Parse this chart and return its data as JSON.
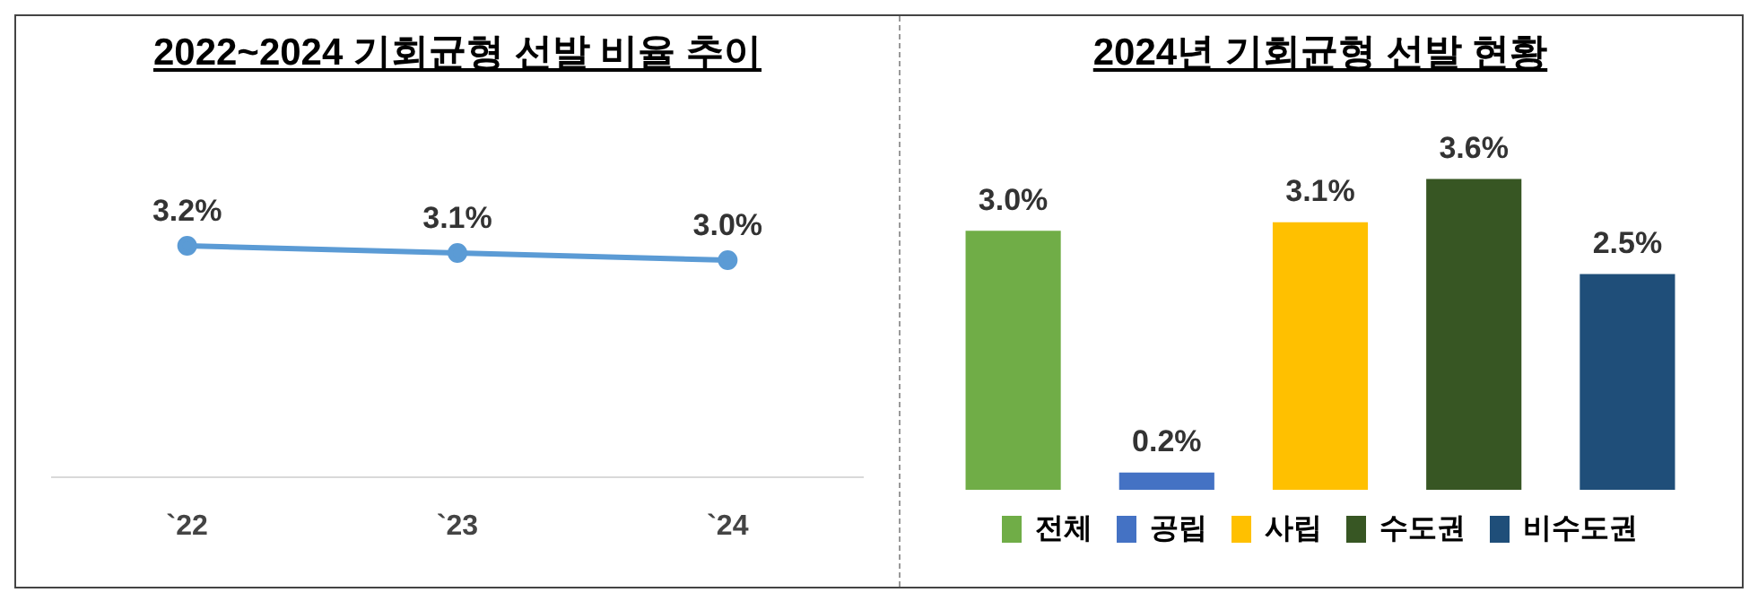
{
  "chart_data": [
    {
      "type": "line",
      "title": "2022~2024 기회균형 선발 비율 추이",
      "categories": [
        "`22",
        "`23",
        "`24"
      ],
      "series": [
        {
          "color": "#5b9bd5",
          "values": [
            3.2,
            3.1,
            3.0
          ],
          "value_labels": [
            "3.2%",
            "3.1%",
            "3.0%"
          ]
        }
      ],
      "marker": "circle",
      "grid": false,
      "legend": false,
      "tick_labels": "x"
    },
    {
      "type": "bar",
      "title": "2024년 기회균형 선발 현황",
      "categories": [
        null,
        null,
        null,
        null,
        null
      ],
      "stacked": true,
      "series": [
        {
          "name": "전체",
          "color": "#70ad47",
          "values": [
            3.0,
            null,
            null,
            null,
            null
          ],
          "value_labels": [
            "3.0%",
            null,
            null,
            null,
            null
          ]
        },
        {
          "name": "공립",
          "color": "#4472c4",
          "values": [
            null,
            0.2,
            null,
            null,
            null
          ],
          "value_labels": [
            null,
            "0.2%",
            null,
            null,
            null
          ]
        },
        {
          "name": "사립",
          "color": "#ffc000",
          "values": [
            null,
            null,
            3.1,
            null,
            null
          ],
          "value_labels": [
            null,
            null,
            "3.1%",
            null,
            null
          ]
        },
        {
          "name": "수도권",
          "color": "#375623",
          "values": [
            null,
            null,
            null,
            3.6,
            null
          ],
          "value_labels": [
            null,
            null,
            null,
            "3.6%",
            null
          ]
        },
        {
          "name": "비수도권",
          "color": "#1f4e79",
          "values": [
            null,
            null,
            null,
            null,
            2.5
          ],
          "value_labels": [
            null,
            null,
            null,
            null,
            "2.5%"
          ]
        }
      ],
      "legend": "bottom",
      "grid": false,
      "tick_labels": false
    }
  ]
}
